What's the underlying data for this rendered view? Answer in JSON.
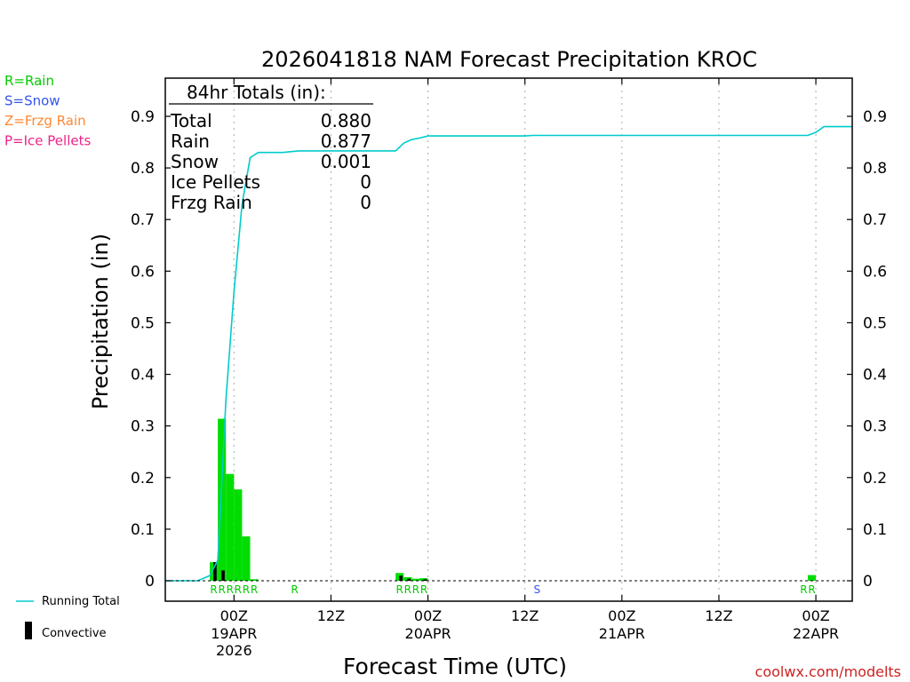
{
  "chart_data": {
    "type": "bar",
    "title": "2026041818 NAM Forecast Precipitation KROC",
    "xlabel": "Forecast Time (UTC)",
    "ylabel": "Precipitation (in)",
    "ylim": [
      0,
      0.96
    ],
    "xlim_hours": [
      -2.5,
      82.5
    ],
    "y_ticks": [
      "0",
      "0.1",
      "0.2",
      "0.3",
      "0.4",
      "0.5",
      "0.6",
      "0.7",
      "0.8",
      "0.9"
    ],
    "x_ticks": [
      {
        "hour": 6,
        "line1": "00Z",
        "line2": "19APR",
        "line3": "2026"
      },
      {
        "hour": 18,
        "line1": "12Z",
        "line2": "",
        "line3": ""
      },
      {
        "hour": 30,
        "line1": "00Z",
        "line2": "20APR",
        "line3": ""
      },
      {
        "hour": 42,
        "line1": "12Z",
        "line2": "",
        "line3": ""
      },
      {
        "hour": 54,
        "line1": "00Z",
        "line2": "21APR",
        "line3": ""
      },
      {
        "hour": 66,
        "line1": "12Z",
        "line2": "",
        "line3": ""
      },
      {
        "hour": 78,
        "line1": "00Z",
        "line2": "22APR",
        "line3": ""
      }
    ],
    "series": [
      {
        "name": "Rain",
        "color": "#00dd00",
        "values": [
          {
            "hour": 4,
            "value": 0.036
          },
          {
            "hour": 5,
            "value": 0.314
          },
          {
            "hour": 6,
            "value": 0.207
          },
          {
            "hour": 7,
            "value": 0.177
          },
          {
            "hour": 8,
            "value": 0.086
          },
          {
            "hour": 9,
            "value": 0.003
          },
          {
            "hour": 27,
            "value": 0.015
          },
          {
            "hour": 28,
            "value": 0.007
          },
          {
            "hour": 29,
            "value": 0.004
          },
          {
            "hour": 30,
            "value": 0.005
          },
          {
            "hour": 78,
            "value": 0.011
          }
        ]
      },
      {
        "name": "Convective",
        "color": "#000000",
        "values": [
          {
            "hour": 4,
            "value": 0.036
          },
          {
            "hour": 5,
            "value": 0.02
          },
          {
            "hour": 27,
            "value": 0.01
          },
          {
            "hour": 28,
            "value": 0.004
          },
          {
            "hour": 30,
            "value": 0.003
          }
        ]
      },
      {
        "name": "Running Total",
        "type": "line",
        "color": "#00cccc",
        "points": [
          [
            -2.5,
            0
          ],
          [
            0.5,
            0
          ],
          [
            1.5,
            0
          ],
          [
            3,
            0.01
          ],
          [
            4,
            0.04
          ],
          [
            5,
            0.35
          ],
          [
            6,
            0.56
          ],
          [
            7,
            0.73
          ],
          [
            8,
            0.82
          ],
          [
            9,
            0.83
          ],
          [
            12,
            0.83
          ],
          [
            14,
            0.833
          ],
          [
            26,
            0.833
          ],
          [
            27,
            0.848
          ],
          [
            28,
            0.855
          ],
          [
            29,
            0.858
          ],
          [
            30,
            0.862
          ],
          [
            42,
            0.862
          ],
          [
            43,
            0.863
          ],
          [
            77,
            0.863
          ],
          [
            78,
            0.869
          ],
          [
            79,
            0.88
          ],
          [
            82.5,
            0.88
          ]
        ]
      }
    ],
    "ptype_markers": [
      {
        "hour": 4,
        "text": "R",
        "color": "#00cc00"
      },
      {
        "hour": 5,
        "text": "R",
        "color": "#00cc00"
      },
      {
        "hour": 6,
        "text": "R",
        "color": "#00cc00"
      },
      {
        "hour": 7,
        "text": "R",
        "color": "#00cc00"
      },
      {
        "hour": 8,
        "text": "R",
        "color": "#00cc00"
      },
      {
        "hour": 9,
        "text": "R",
        "color": "#00cc00"
      },
      {
        "hour": 14,
        "text": "R",
        "color": "#00cc00"
      },
      {
        "hour": 27,
        "text": "R",
        "color": "#00cc00"
      },
      {
        "hour": 28,
        "text": "R",
        "color": "#00cc00"
      },
      {
        "hour": 29,
        "text": "R",
        "color": "#00cc00"
      },
      {
        "hour": 30,
        "text": "R",
        "color": "#00cc00"
      },
      {
        "hour": 44,
        "text": "S",
        "color": "#3355ee"
      },
      {
        "hour": 77,
        "text": "R",
        "color": "#00cc00"
      },
      {
        "hour": 78,
        "text": "R",
        "color": "#00cc00"
      }
    ],
    "totals": {
      "header": "84hr Totals (in):",
      "rows": [
        {
          "label": "Total",
          "value": "0.880"
        },
        {
          "label": "Rain",
          "value": "0.877"
        },
        {
          "label": "Snow",
          "value": "0.001"
        },
        {
          "label": "Ice Pellets",
          "value": "0"
        },
        {
          "label": "Frzg Rain",
          "value": "0"
        }
      ]
    },
    "ptype_legend": [
      {
        "text": "R=Rain",
        "color": "#00cc00"
      },
      {
        "text": "S=Snow",
        "color": "#3355ee"
      },
      {
        "text": "Z=Frzg Rain",
        "color": "#ff8833"
      },
      {
        "text": "P=Ice Pellets",
        "color": "#ee2288"
      }
    ],
    "legend_bottom": [
      {
        "text": "Running Total",
        "symbol": "line",
        "color": "#00cccc"
      },
      {
        "text": "Convective",
        "symbol": "bar",
        "color": "#000000"
      }
    ],
    "credit": "coolwx.com/modelts",
    "colors": {
      "axis": "#000000",
      "grid": "#aaaaaa",
      "rain": "#00dd00",
      "convective": "#000000",
      "running_total": "#00cccc",
      "credit": "#cc2222"
    }
  }
}
